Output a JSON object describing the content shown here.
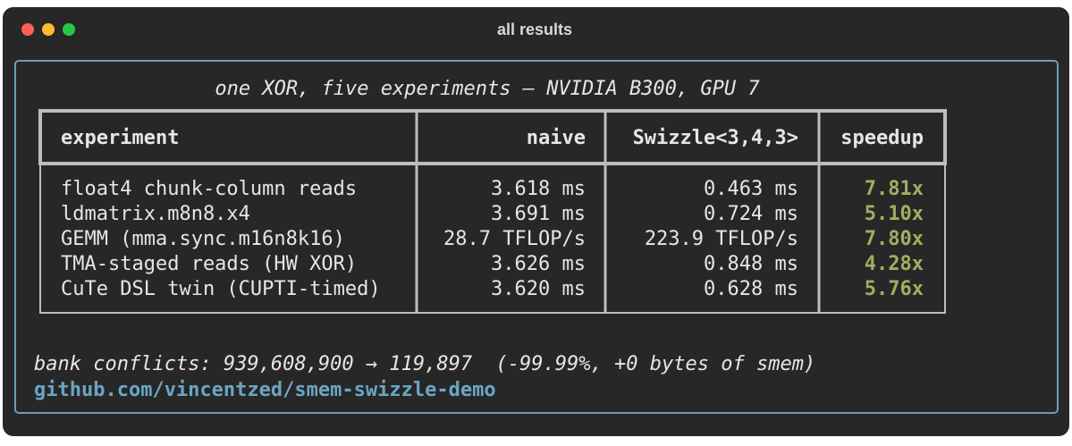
{
  "window": {
    "title": "all results"
  },
  "panel": {
    "heading": "one XOR, five experiments — NVIDIA B300, GPU 7"
  },
  "table": {
    "headers": [
      "experiment",
      "naive",
      "Swizzle<3,4,3>",
      "speedup"
    ],
    "rows": [
      [
        "float4 chunk-column reads",
        "3.618 ms",
        "0.463 ms",
        "7.81x"
      ],
      [
        "ldmatrix.m8n8.x4",
        "3.691 ms",
        "0.724 ms",
        "5.10x"
      ],
      [
        "GEMM (mma.sync.m16n8k16)",
        "28.7 TFLOP/s",
        "223.9 TFLOP/s",
        "7.80x"
      ],
      [
        "TMA-staged reads (HW XOR)",
        "3.626 ms",
        "0.848 ms",
        "4.28x"
      ],
      [
        "CuTe DSL twin (CUPTI-timed)",
        "3.620 ms",
        "0.628 ms",
        "5.76x"
      ]
    ]
  },
  "footer": {
    "note": "bank conflicts: 939,608,900 → 119,897  (-99.99%, +0 bytes of smem)",
    "link": "github.com/vincentzed/smem-swizzle-demo"
  }
}
